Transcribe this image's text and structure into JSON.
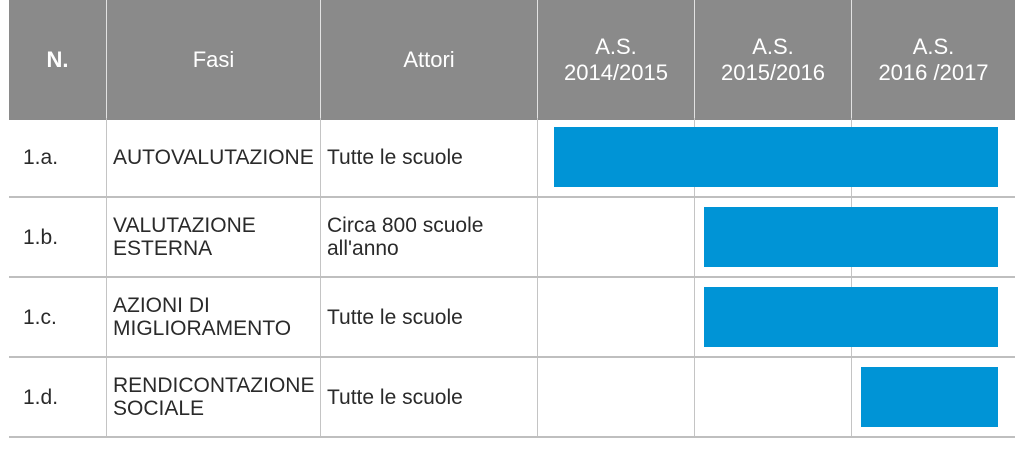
{
  "header": {
    "number": "N.",
    "fasi": "Fasi",
    "attori": "Attori",
    "years": [
      {
        "line1": "A.S.",
        "line2": "2014/2015"
      },
      {
        "line1": "A.S.",
        "line2": "2015/2016"
      },
      {
        "line1": "A.S.",
        "line2": "2016 /2017"
      }
    ]
  },
  "rows": [
    {
      "number": "1.a.",
      "fase_lines": [
        "AUTOVALUTAZIONE"
      ],
      "attori_lines": [
        "Tutte le scuole"
      ],
      "bar_start_year": 0,
      "bar_end_year": 3
    },
    {
      "number": "1.b.",
      "fase_lines": [
        "VALUTAZIONE",
        "ESTERNA"
      ],
      "attori_lines": [
        "Circa 800 scuole",
        "all'anno"
      ],
      "bar_start_year": 1,
      "bar_end_year": 3
    },
    {
      "number": "1.c.",
      "fase_lines": [
        "AZIONI DI",
        "MIGLIORAMENTO"
      ],
      "attori_lines": [
        "Tutte le scuole"
      ],
      "bar_start_year": 1,
      "bar_end_year": 3
    },
    {
      "number": "1.d.",
      "fase_lines": [
        "RENDICONTAZIONE",
        "SOCIALE"
      ],
      "attori_lines": [
        "Tutte le scuole"
      ],
      "bar_start_year": 2,
      "bar_end_year": 3
    }
  ],
  "colors": {
    "header_bg": "#8a8a8a",
    "bar": "#0094d6"
  }
}
